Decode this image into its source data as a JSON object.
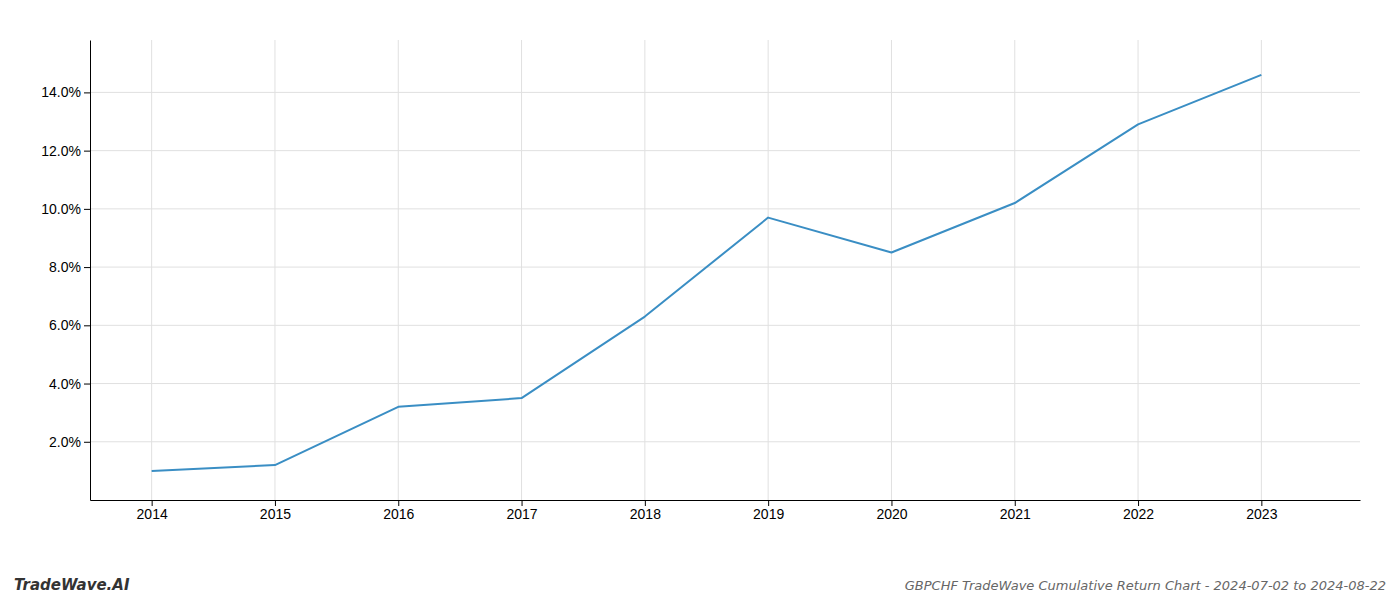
{
  "chart_data": {
    "type": "line",
    "title": "GBPCHF TradeWave Cumulative Return Chart - 2024-07-02 to 2024-08-22",
    "annotations": [
      "TradeWave.AI"
    ],
    "x": [
      2014,
      2015,
      2016,
      2017,
      2018,
      2019,
      2020,
      2021,
      2022,
      2023
    ],
    "values": [
      0.01,
      0.012,
      0.032,
      0.035,
      0.063,
      0.097,
      0.085,
      0.102,
      0.129,
      0.146
    ],
    "color": "#3a8ec4",
    "xlim": [
      2013.5,
      2023.8
    ],
    "xticks": [
      2014,
      2015,
      2016,
      2017,
      2018,
      2019,
      2020,
      2021,
      2022,
      2023
    ],
    "ylim": [
      0.0,
      0.158
    ],
    "yticks": [
      {
        "value": 0.02,
        "label": "2.0%"
      },
      {
        "value": 0.04,
        "label": "4.0%"
      },
      {
        "value": 0.06,
        "label": "6.0%"
      },
      {
        "value": 0.08,
        "label": "8.0%"
      },
      {
        "value": 0.1,
        "label": "10.0%"
      },
      {
        "value": 0.12,
        "label": "12.0%"
      },
      {
        "value": 0.14,
        "label": "14.0%"
      }
    ],
    "grid": true
  }
}
